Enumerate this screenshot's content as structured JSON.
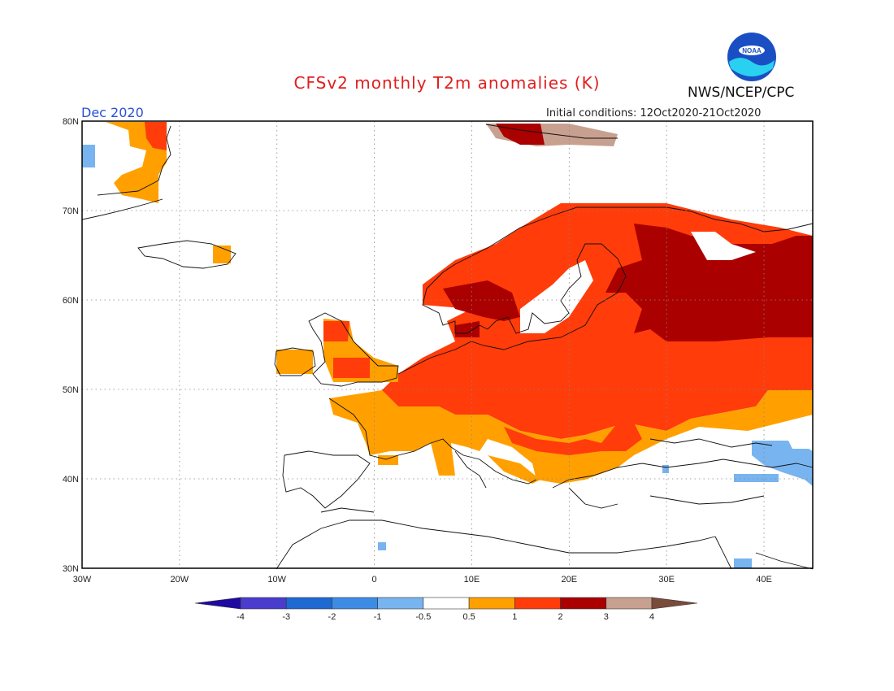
{
  "header": {
    "title": "CFSv2 monthly T2m anomalies (K)",
    "agency": "NWS/NCEP/CPC",
    "month": "Dec 2020",
    "initial_conditions": "Initial conditions: 12Oct2020-21Oct2020",
    "logo_text": "NOAA"
  },
  "map": {
    "lon_range": [
      -30,
      45
    ],
    "lat_range": [
      30,
      80
    ],
    "lon_labels": [
      "30W",
      "20W",
      "10W",
      "0",
      "10E",
      "20E",
      "30E",
      "40E"
    ],
    "lat_labels": [
      "30N",
      "40N",
      "50N",
      "60N",
      "70N",
      "80N"
    ],
    "grid": "dotted"
  },
  "colorbar": {
    "tick_labels": [
      "-4",
      "-3",
      "-2",
      "-1",
      "-0.5",
      "0.5",
      "1",
      "2",
      "3",
      "4"
    ],
    "colors": [
      "#1e0aa0",
      "#4a3ccc",
      "#1e6ad2",
      "#3c8ce6",
      "#78b4f0",
      "#ffffff",
      "#ffa000",
      "#ff3c0a",
      "#aa0000",
      "#c8a090",
      "#7a4a3a"
    ]
  },
  "colors": {
    "title": "#e11e1e",
    "month": "#2a4fd6",
    "orange": "#ffa000",
    "red": "#ff3c0a",
    "darkred": "#aa0000",
    "tan": "#c8a090",
    "lightblue": "#78b4f0"
  }
}
